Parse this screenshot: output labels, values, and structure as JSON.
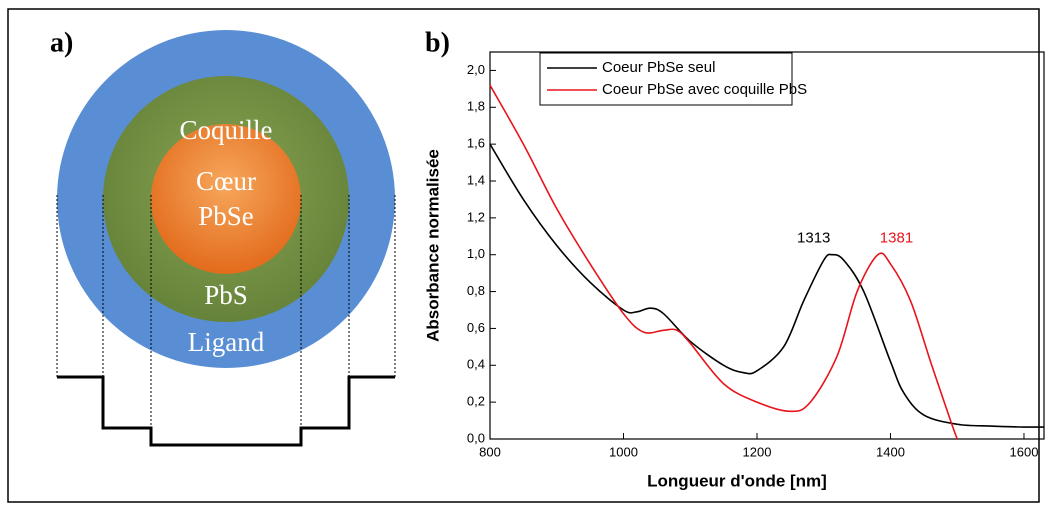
{
  "panel_a": {
    "label": "a)",
    "texts": [
      "Coquille",
      "Cœur",
      "PbSe",
      "PbS",
      "Ligand"
    ]
  },
  "chart_data": {
    "type": "line",
    "panel_label": "b)",
    "x_label": "Longueur d'onde [nm]",
    "y_label": "Absorbance normalisée",
    "xlim": [
      800,
      1630
    ],
    "ylim": [
      0,
      2.1
    ],
    "xticks": [
      800,
      1000,
      1200,
      1400,
      1600
    ],
    "yticks": [
      {
        "value": 0,
        "label": "0,0"
      },
      {
        "value": 0.2,
        "label": "0,2"
      },
      {
        "value": 0.4,
        "label": "0,4"
      },
      {
        "value": 0.6,
        "label": "0,6"
      },
      {
        "value": 0.8,
        "label": "0,8"
      },
      {
        "value": 1.0,
        "label": "1,0"
      },
      {
        "value": 1.2,
        "label": "1,2"
      },
      {
        "value": 1.4,
        "label": "1,4"
      },
      {
        "value": 1.6,
        "label": "1,6"
      },
      {
        "value": 1.8,
        "label": "1,8"
      },
      {
        "value": 2.0,
        "label": "2,0"
      }
    ],
    "legend": "upper left",
    "series": [
      {
        "name": "Coeur PbSe seul",
        "color": "#000000",
        "x": [
          800,
          850,
          900,
          950,
          1000,
          1020,
          1040,
          1060,
          1100,
          1150,
          1180,
          1200,
          1240,
          1270,
          1300,
          1313,
          1330,
          1360,
          1400,
          1420,
          1450,
          1500,
          1550,
          1600,
          1630
        ],
        "values": [
          1.6,
          1.3,
          1.05,
          0.85,
          0.7,
          0.69,
          0.71,
          0.68,
          0.53,
          0.4,
          0.36,
          0.37,
          0.5,
          0.75,
          0.97,
          1.0,
          0.97,
          0.8,
          0.42,
          0.25,
          0.13,
          0.08,
          0.07,
          0.065,
          0.065
        ]
      },
      {
        "name": "Coeur PbSe avec coquille PbS",
        "color": "#e8141b",
        "x": [
          800,
          850,
          900,
          950,
          1000,
          1030,
          1060,
          1080,
          1100,
          1150,
          1200,
          1250,
          1280,
          1320,
          1350,
          1381,
          1400,
          1430,
          1460,
          1490,
          1500
        ],
        "values": [
          1.92,
          1.6,
          1.25,
          0.95,
          0.68,
          0.58,
          0.59,
          0.59,
          0.52,
          0.3,
          0.2,
          0.15,
          0.2,
          0.45,
          0.8,
          1.0,
          0.95,
          0.75,
          0.42,
          0.1,
          0.0
        ]
      }
    ],
    "annotations": [
      {
        "text": "1313",
        "x": 1313,
        "y": 1.0,
        "color": "#000000"
      },
      {
        "text": "1381",
        "x": 1381,
        "y": 1.0,
        "color": "#e8141b"
      }
    ]
  }
}
